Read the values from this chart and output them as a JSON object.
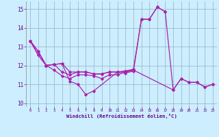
{
  "xlabel": "Windchill (Refroidissement éolien,°C)",
  "bg_color": "#cceeff",
  "line_color": "#aa22aa",
  "grid_color": "#99bbcc",
  "xlim": [
    -0.5,
    23.5
  ],
  "ylim": [
    9.8,
    15.4
  ],
  "yticks": [
    10,
    11,
    12,
    13,
    14,
    15
  ],
  "xticks": [
    0,
    1,
    2,
    3,
    4,
    5,
    6,
    7,
    8,
    9,
    10,
    11,
    12,
    13,
    14,
    15,
    16,
    17,
    18,
    19,
    20,
    21,
    22,
    23
  ],
  "series": [
    [
      13.3,
      12.75,
      12.0,
      12.05,
      12.1,
      11.15,
      11.0,
      10.45,
      10.65,
      null,
      null,
      11.65,
      11.6,
      11.7,
      14.45,
      14.45,
      15.1,
      14.85,
      null,
      null,
      null,
      null,
      null,
      null
    ],
    [
      13.3,
      12.75,
      12.0,
      12.05,
      11.65,
      11.5,
      11.65,
      11.65,
      11.55,
      11.55,
      11.65,
      11.65,
      11.7,
      11.75,
      null,
      null,
      null,
      null,
      10.7,
      11.3,
      11.1,
      11.1,
      10.85,
      11.0
    ],
    [
      13.3,
      12.55,
      12.0,
      12.05,
      12.1,
      11.65,
      11.65,
      11.65,
      11.55,
      11.55,
      11.65,
      11.65,
      11.7,
      11.8,
      14.45,
      14.45,
      15.1,
      14.85,
      10.7,
      11.3,
      11.1,
      11.1,
      10.85,
      11.0
    ],
    [
      13.3,
      12.55,
      12.0,
      11.75,
      11.45,
      11.3,
      11.5,
      11.5,
      11.45,
      11.3,
      11.5,
      11.5,
      11.65,
      11.75,
      null,
      null,
      null,
      null,
      null,
      null,
      null,
      null,
      null,
      null
    ]
  ]
}
